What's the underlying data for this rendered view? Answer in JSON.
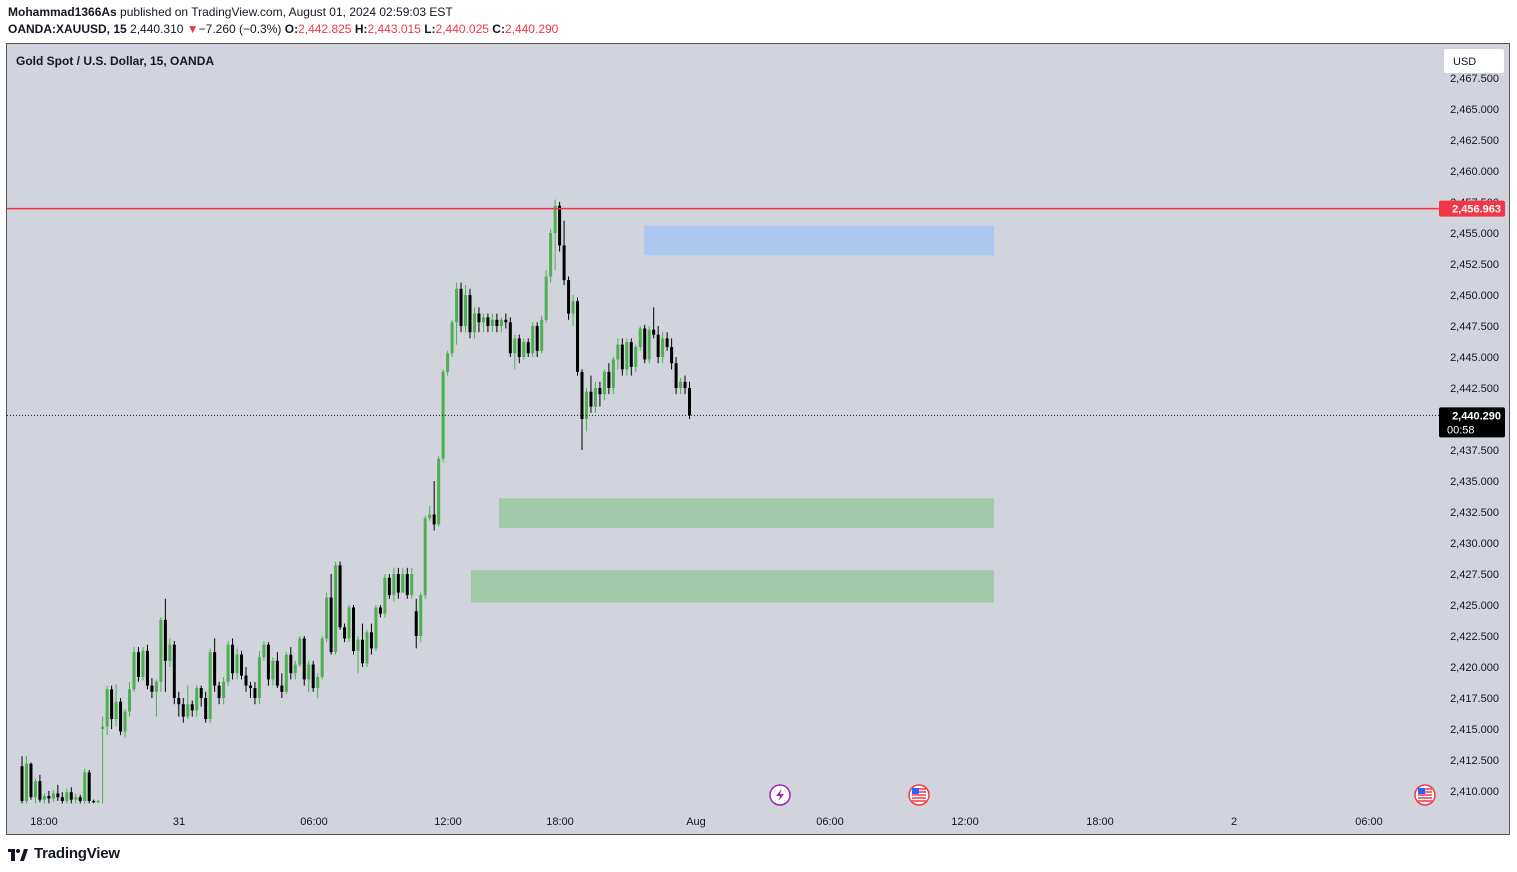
{
  "header": {
    "author": "Mohammad1366As",
    "published": " published on TradingView.com, August 01, 2024 02:59:03 EST",
    "symbol": "OANDA:XAUUSD, 15",
    "last": "2,440.310",
    "change_arrow": "▼",
    "change": "−7.260 (−0.3%)",
    "o_label": "O:",
    "o": "2,442.825",
    "h_label": "H:",
    "h": "2,443.015",
    "l_label": "L:",
    "l": "2,440.025",
    "c_label": "C:",
    "c": "2,440.290"
  },
  "chart_title": "Gold Spot / U.S. Dollar, 15, OANDA",
  "currency_button": "USD",
  "footer_brand": "TradingView",
  "colors": {
    "background": "#d1d4dc",
    "up": "#4caf50",
    "down": "#000000",
    "level_line": "#f23645",
    "zone_blue": "#a9c6f0",
    "zone_green": "#9cc9a2"
  },
  "chart_data": {
    "type": "candlestick",
    "ylim": [
      2409,
      2467.5
    ],
    "y_ticks": [
      2467.5,
      2465,
      2462.5,
      2460,
      2457.5,
      2455,
      2452.5,
      2450,
      2447.5,
      2445,
      2442.5,
      2437.5,
      2435,
      2432.5,
      2430,
      2427.5,
      2425,
      2422.5,
      2420,
      2417.5,
      2415,
      2412.5,
      2410
    ],
    "x_labels": [
      "18:00",
      "31",
      "06:00",
      "12:00",
      "18:00",
      "Aug",
      "06:00",
      "12:00",
      "18:00",
      "2",
      "06:00"
    ],
    "resistance_level": {
      "value": 2456.963,
      "label": "2,456.963"
    },
    "last_price": {
      "value": 2440.29,
      "label": "2,440.290",
      "countdown": "00:58"
    },
    "zones": [
      {
        "name": "supply",
        "top": 2455.6,
        "bottom": 2453.2
      },
      {
        "name": "demand-upper",
        "top": 2433.6,
        "bottom": 2431.2
      },
      {
        "name": "demand-lower",
        "top": 2427.8,
        "bottom": 2425.2
      }
    ],
    "event_icons": [
      "lightning-event",
      "us-flag-event",
      "us-flag-event"
    ],
    "candles": [
      [
        2412.0,
        2412.8,
        2409.0,
        2409.2
      ],
      [
        2409.2,
        2412.8,
        2409.0,
        2412.2
      ],
      [
        2412.2,
        2412.3,
        2409.3,
        2409.5
      ],
      [
        2409.5,
        2411.0,
        2409.0,
        2410.8
      ],
      [
        2410.8,
        2411.3,
        2409.1,
        2409.3
      ],
      [
        2409.3,
        2409.8,
        2409.0,
        2409.6
      ],
      [
        2409.6,
        2410.0,
        2409.0,
        2409.4
      ],
      [
        2409.4,
        2410.1,
        2409.1,
        2409.8
      ],
      [
        2409.8,
        2410.5,
        2409.2,
        2409.5
      ],
      [
        2409.5,
        2409.9,
        2409.0,
        2409.2
      ],
      [
        2409.2,
        2410.2,
        2409.0,
        2409.9
      ],
      [
        2409.9,
        2410.3,
        2409.0,
        2409.3
      ],
      [
        2409.3,
        2409.8,
        2409.0,
        2409.5
      ],
      [
        2409.5,
        2409.7,
        2409.0,
        2409.2
      ],
      [
        2409.2,
        2411.8,
        2409.0,
        2411.5
      ],
      [
        2411.5,
        2411.7,
        2409.0,
        2409.2
      ],
      [
        2409.2,
        2409.3,
        2409.0,
        2409.1
      ],
      [
        2409.1,
        2409.3,
        2409.0,
        2409.2
      ],
      [
        2415.0,
        2416.0,
        2409.0,
        2415.2
      ],
      [
        2415.2,
        2418.5,
        2414.5,
        2418.2
      ],
      [
        2418.2,
        2418.5,
        2415.0,
        2415.8
      ],
      [
        2415.8,
        2418.6,
        2415.2,
        2417.2
      ],
      [
        2417.2,
        2417.5,
        2414.5,
        2414.8
      ],
      [
        2414.8,
        2416.6,
        2414.3,
        2416.4
      ],
      [
        2416.4,
        2418.8,
        2416.0,
        2418.2
      ],
      [
        2418.2,
        2421.6,
        2418.0,
        2421.2
      ],
      [
        2421.2,
        2421.6,
        2418.8,
        2419.2
      ],
      [
        2419.2,
        2421.6,
        2418.9,
        2421.3
      ],
      [
        2421.3,
        2421.8,
        2418.2,
        2418.5
      ],
      [
        2418.5,
        2419.1,
        2417.5,
        2418.0
      ],
      [
        2418.0,
        2419.0,
        2416.0,
        2418.8
      ],
      [
        2418.8,
        2424.0,
        2418.0,
        2423.8
      ],
      [
        2423.8,
        2425.5,
        2418.0,
        2420.5
      ],
      [
        2420.5,
        2422.3,
        2420.0,
        2421.8
      ],
      [
        2421.8,
        2422.1,
        2417.0,
        2417.5
      ],
      [
        2417.5,
        2418.0,
        2416.0,
        2417.0
      ],
      [
        2417.0,
        2417.5,
        2415.5,
        2416.0
      ],
      [
        2416.0,
        2418.5,
        2415.8,
        2417.0
      ],
      [
        2417.0,
        2417.3,
        2416.0,
        2416.5
      ],
      [
        2416.5,
        2418.5,
        2416.0,
        2418.3
      ],
      [
        2418.3,
        2418.5,
        2416.8,
        2417.5
      ],
      [
        2417.5,
        2418.0,
        2415.5,
        2415.8
      ],
      [
        2415.8,
        2421.5,
        2415.5,
        2421.2
      ],
      [
        2421.2,
        2422.3,
        2418.0,
        2418.5
      ],
      [
        2418.5,
        2418.8,
        2417.0,
        2417.5
      ],
      [
        2417.5,
        2419.2,
        2417.0,
        2418.8
      ],
      [
        2418.8,
        2422.1,
        2418.5,
        2421.8
      ],
      [
        2421.8,
        2422.3,
        2419.0,
        2419.5
      ],
      [
        2419.5,
        2421.5,
        2419.0,
        2421.0
      ],
      [
        2421.0,
        2421.3,
        2419.0,
        2419.3
      ],
      [
        2419.3,
        2420.0,
        2418.0,
        2418.5
      ],
      [
        2418.5,
        2418.8,
        2417.5,
        2418.3
      ],
      [
        2418.3,
        2418.8,
        2417.0,
        2417.5
      ],
      [
        2417.5,
        2421.3,
        2417.0,
        2420.8
      ],
      [
        2420.8,
        2422.1,
        2420.5,
        2421.8
      ],
      [
        2421.8,
        2422.0,
        2418.5,
        2419.0
      ],
      [
        2419.0,
        2420.8,
        2418.5,
        2420.5
      ],
      [
        2420.5,
        2421.2,
        2418.3,
        2418.5
      ],
      [
        2418.5,
        2419.5,
        2417.5,
        2418.0
      ],
      [
        2418.0,
        2421.2,
        2417.8,
        2421.0
      ],
      [
        2421.0,
        2421.6,
        2419.0,
        2419.5
      ],
      [
        2419.5,
        2420.5,
        2419.0,
        2420.2
      ],
      [
        2420.2,
        2422.5,
        2420.0,
        2422.3
      ],
      [
        2422.3,
        2422.5,
        2418.5,
        2419.0
      ],
      [
        2419.0,
        2420.5,
        2418.0,
        2420.2
      ],
      [
        2420.2,
        2420.5,
        2418.0,
        2418.3
      ],
      [
        2418.3,
        2419.5,
        2417.5,
        2419.2
      ],
      [
        2419.2,
        2422.5,
        2419.0,
        2422.3
      ],
      [
        2422.3,
        2426.0,
        2422.0,
        2425.6
      ],
      [
        2425.6,
        2427.5,
        2421.0,
        2421.2
      ],
      [
        2421.2,
        2428.5,
        2421.0,
        2428.2
      ],
      [
        2428.2,
        2428.5,
        2423.0,
        2423.2
      ],
      [
        2423.2,
        2423.5,
        2422.0,
        2422.3
      ],
      [
        2422.3,
        2425.0,
        2422.0,
        2424.8
      ],
      [
        2424.8,
        2425.0,
        2421.0,
        2421.3
      ],
      [
        2421.3,
        2422.5,
        2419.5,
        2422.2
      ],
      [
        2422.2,
        2423.5,
        2420.0,
        2420.3
      ],
      [
        2420.3,
        2423.0,
        2420.0,
        2422.8
      ],
      [
        2422.8,
        2423.5,
        2421.0,
        2421.5
      ],
      [
        2421.5,
        2425.0,
        2421.3,
        2424.8
      ],
      [
        2424.8,
        2425.0,
        2424.0,
        2424.3
      ],
      [
        2424.3,
        2427.5,
        2424.0,
        2427.2
      ],
      [
        2427.2,
        2427.5,
        2425.5,
        2425.8
      ],
      [
        2425.8,
        2428.0,
        2425.3,
        2427.5
      ],
      [
        2427.5,
        2428.0,
        2425.5,
        2426.0
      ],
      [
        2426.0,
        2428.0,
        2426.0,
        2427.5
      ],
      [
        2427.5,
        2428.0,
        2425.5,
        2425.8
      ],
      [
        2425.8,
        2428.0,
        2425.5,
        2427.5
      ],
      [
        2424.5,
        2425.5,
        2421.5,
        2422.5
      ],
      [
        2422.5,
        2426.0,
        2422.0,
        2425.8
      ],
      [
        2425.8,
        2432.2,
        2425.5,
        2432.0
      ],
      [
        2432.0,
        2433.0,
        2431.8,
        2432.3
      ],
      [
        2432.3,
        2435.0,
        2431.0,
        2431.5
      ],
      [
        2431.5,
        2437.0,
        2431.3,
        2436.8
      ],
      [
        2436.8,
        2444.0,
        2436.5,
        2443.8
      ],
      [
        2443.8,
        2445.5,
        2443.5,
        2445.3
      ],
      [
        2445.3,
        2448.0,
        2445.0,
        2447.8
      ],
      [
        2447.8,
        2451.0,
        2446.0,
        2450.5
      ],
      [
        2450.5,
        2451.0,
        2447.0,
        2447.5
      ],
      [
        2447.5,
        2450.8,
        2447.0,
        2450.0
      ],
      [
        2450.0,
        2450.5,
        2446.5,
        2447.0
      ],
      [
        2447.0,
        2449.0,
        2446.5,
        2448.5
      ],
      [
        2448.5,
        2449.0,
        2447.0,
        2447.8
      ],
      [
        2447.8,
        2448.5,
        2447.0,
        2448.2
      ],
      [
        2448.2,
        2448.5,
        2447.0,
        2447.5
      ],
      [
        2447.5,
        2448.5,
        2447.0,
        2448.0
      ],
      [
        2448.0,
        2448.5,
        2447.0,
        2447.5
      ],
      [
        2447.5,
        2448.2,
        2447.0,
        2448.0
      ],
      [
        2448.0,
        2448.5,
        2447.3,
        2447.8
      ],
      [
        2447.8,
        2448.2,
        2445.0,
        2445.3
      ],
      [
        2445.3,
        2446.8,
        2444.0,
        2446.5
      ],
      [
        2446.5,
        2446.8,
        2444.5,
        2445.0
      ],
      [
        2445.0,
        2446.5,
        2444.8,
        2446.2
      ],
      [
        2446.2,
        2446.5,
        2445.0,
        2445.3
      ],
      [
        2445.3,
        2447.8,
        2445.0,
        2447.5
      ],
      [
        2447.5,
        2447.8,
        2445.0,
        2445.5
      ],
      [
        2445.5,
        2448.3,
        2445.3,
        2448.0
      ],
      [
        2448.0,
        2452.0,
        2447.8,
        2451.5
      ],
      [
        2451.5,
        2455.3,
        2451.0,
        2455.0
      ],
      [
        2455.0,
        2457.7,
        2452.0,
        2457.2
      ],
      [
        2457.2,
        2457.5,
        2453.5,
        2454.0
      ],
      [
        2454.0,
        2456.0,
        2450.8,
        2451.2
      ],
      [
        2451.2,
        2451.5,
        2448.0,
        2448.5
      ],
      [
        2448.5,
        2450.0,
        2447.5,
        2449.5
      ],
      [
        2449.5,
        2449.8,
        2443.5,
        2443.8
      ],
      [
        2443.8,
        2444.0,
        2437.5,
        2440.0
      ],
      [
        2440.0,
        2442.5,
        2439.0,
        2442.2
      ],
      [
        2442.2,
        2443.5,
        2440.5,
        2441.0
      ],
      [
        2441.0,
        2443.0,
        2440.5,
        2442.5
      ],
      [
        2442.5,
        2443.0,
        2441.0,
        2442.0
      ],
      [
        2442.0,
        2444.0,
        2441.5,
        2443.8
      ],
      [
        2443.8,
        2444.5,
        2442.0,
        2442.5
      ],
      [
        2442.5,
        2445.0,
        2442.0,
        2444.8
      ],
      [
        2444.8,
        2446.5,
        2444.0,
        2446.0
      ],
      [
        2446.0,
        2446.5,
        2443.5,
        2444.0
      ],
      [
        2444.0,
        2446.5,
        2443.5,
        2446.2
      ],
      [
        2446.2,
        2446.5,
        2443.5,
        2444.2
      ],
      [
        2444.2,
        2446.0,
        2443.8,
        2445.8
      ],
      [
        2445.8,
        2447.5,
        2445.5,
        2447.3
      ],
      [
        2447.3,
        2447.6,
        2444.5,
        2444.8
      ],
      [
        2444.8,
        2447.5,
        2444.5,
        2447.2
      ],
      [
        2447.2,
        2449.0,
        2446.5,
        2446.8
      ],
      [
        2446.8,
        2447.5,
        2444.5,
        2445.0
      ],
      [
        2445.0,
        2447.0,
        2444.5,
        2446.5
      ],
      [
        2446.5,
        2447.0,
        2445.5,
        2445.8
      ],
      [
        2445.8,
        2446.5,
        2444.0,
        2444.5
      ],
      [
        2444.5,
        2445.0,
        2442.0,
        2442.5
      ],
      [
        2442.5,
        2443.3,
        2442.0,
        2443.0
      ],
      [
        2443.0,
        2443.5,
        2442.0,
        2442.5
      ],
      [
        2442.5,
        2443.0,
        2440.0,
        2440.3
      ]
    ]
  }
}
